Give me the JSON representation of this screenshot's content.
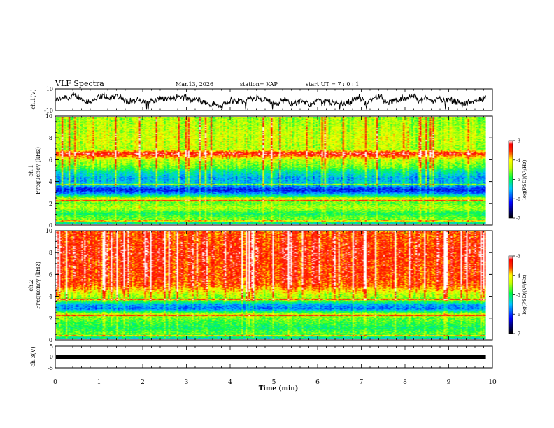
{
  "header": {
    "title": "VLF Spectra",
    "date": "Mar.13, 2026",
    "station": "station= KAP",
    "start_time": "start  UT  =   7 : 0  : 1"
  },
  "chart_data": [
    {
      "id": "ch1-waveform",
      "type": "line",
      "ylabel": "ch.1(V)",
      "ylim": [
        -10,
        10
      ],
      "ytick_labels": [
        "10",
        "-10"
      ],
      "description_values": "noisy trace centered near 0 V",
      "x_range_min": [
        0,
        9.85
      ]
    },
    {
      "id": "ch1-spectrogram",
      "type": "heatmap",
      "ylabel": "ch.1\nFrequency (kHz)",
      "ylabel_lines": [
        "ch.1",
        "Frequency (kHz)"
      ],
      "ylim": [
        0,
        10
      ],
      "ytick_labels": [
        "0",
        "2",
        "4",
        "6",
        "8",
        "10"
      ],
      "colorbar": {
        "label": "log(PSD)(V²/Hz)",
        "range": [
          -7,
          -3
        ],
        "tick_labels": [
          "-3",
          "-4",
          "-5",
          "-6",
          "-7"
        ]
      },
      "profile_khz_to_level": [
        [
          0.0,
          -5.3
        ],
        [
          0.5,
          -4.6
        ],
        [
          1.0,
          -5.0
        ],
        [
          1.5,
          -4.4
        ],
        [
          2.0,
          -4.7
        ],
        [
          2.4,
          -4.3
        ],
        [
          2.8,
          -5.6
        ],
        [
          3.2,
          -6.2
        ],
        [
          3.7,
          -5.4
        ],
        [
          4.3,
          -5.6
        ],
        [
          4.9,
          -5.2
        ],
        [
          5.3,
          -4.7
        ],
        [
          6.0,
          -4.4
        ],
        [
          6.6,
          -3.3
        ],
        [
          7.0,
          -4.4
        ],
        [
          8.0,
          -4.3
        ],
        [
          9.0,
          -4.4
        ],
        [
          10.0,
          -4.5
        ]
      ],
      "activity": 0.55
    },
    {
      "id": "ch2-spectrogram",
      "type": "heatmap",
      "ylabel": "ch.2\nFrequency (kHz)",
      "ylabel_lines": [
        "ch.2",
        "Frequency (kHz)"
      ],
      "ylim": [
        0,
        10
      ],
      "ytick_labels": [
        "0",
        "2",
        "4",
        "6",
        "8",
        "10"
      ],
      "colorbar": {
        "label": "log(PSD)(V²/Hz)",
        "range": [
          -7,
          -3
        ],
        "tick_labels": [
          "-3",
          "-4",
          "-5",
          "-6",
          "-7"
        ]
      },
      "profile_khz_to_level": [
        [
          0.0,
          -5.3
        ],
        [
          0.5,
          -4.7
        ],
        [
          1.0,
          -5.0
        ],
        [
          1.5,
          -4.8
        ],
        [
          2.0,
          -4.6
        ],
        [
          2.3,
          -4.3
        ],
        [
          2.8,
          -5.8
        ],
        [
          3.2,
          -5.6
        ],
        [
          3.6,
          -4.6
        ],
        [
          4.2,
          -4.3
        ],
        [
          5.0,
          -3.6
        ],
        [
          6.0,
          -3.5
        ],
        [
          7.0,
          -3.5
        ],
        [
          8.0,
          -3.4
        ],
        [
          9.0,
          -3.5
        ],
        [
          10.0,
          -3.6
        ]
      ],
      "activity": 0.8
    },
    {
      "id": "ch3-waveform",
      "type": "line",
      "ylabel": "ch.3(V)",
      "ylim": [
        -5,
        5
      ],
      "ytick_labels": [
        "5",
        "0",
        "-5"
      ],
      "trace_level": 0
    }
  ],
  "x_axis": {
    "label": "Time  (min)",
    "range": [
      0,
      10
    ],
    "tick_labels": [
      "0",
      "1",
      "2",
      "3",
      "4",
      "5",
      "6",
      "7",
      "8",
      "9",
      "10"
    ],
    "data_end_min": 9.85
  }
}
